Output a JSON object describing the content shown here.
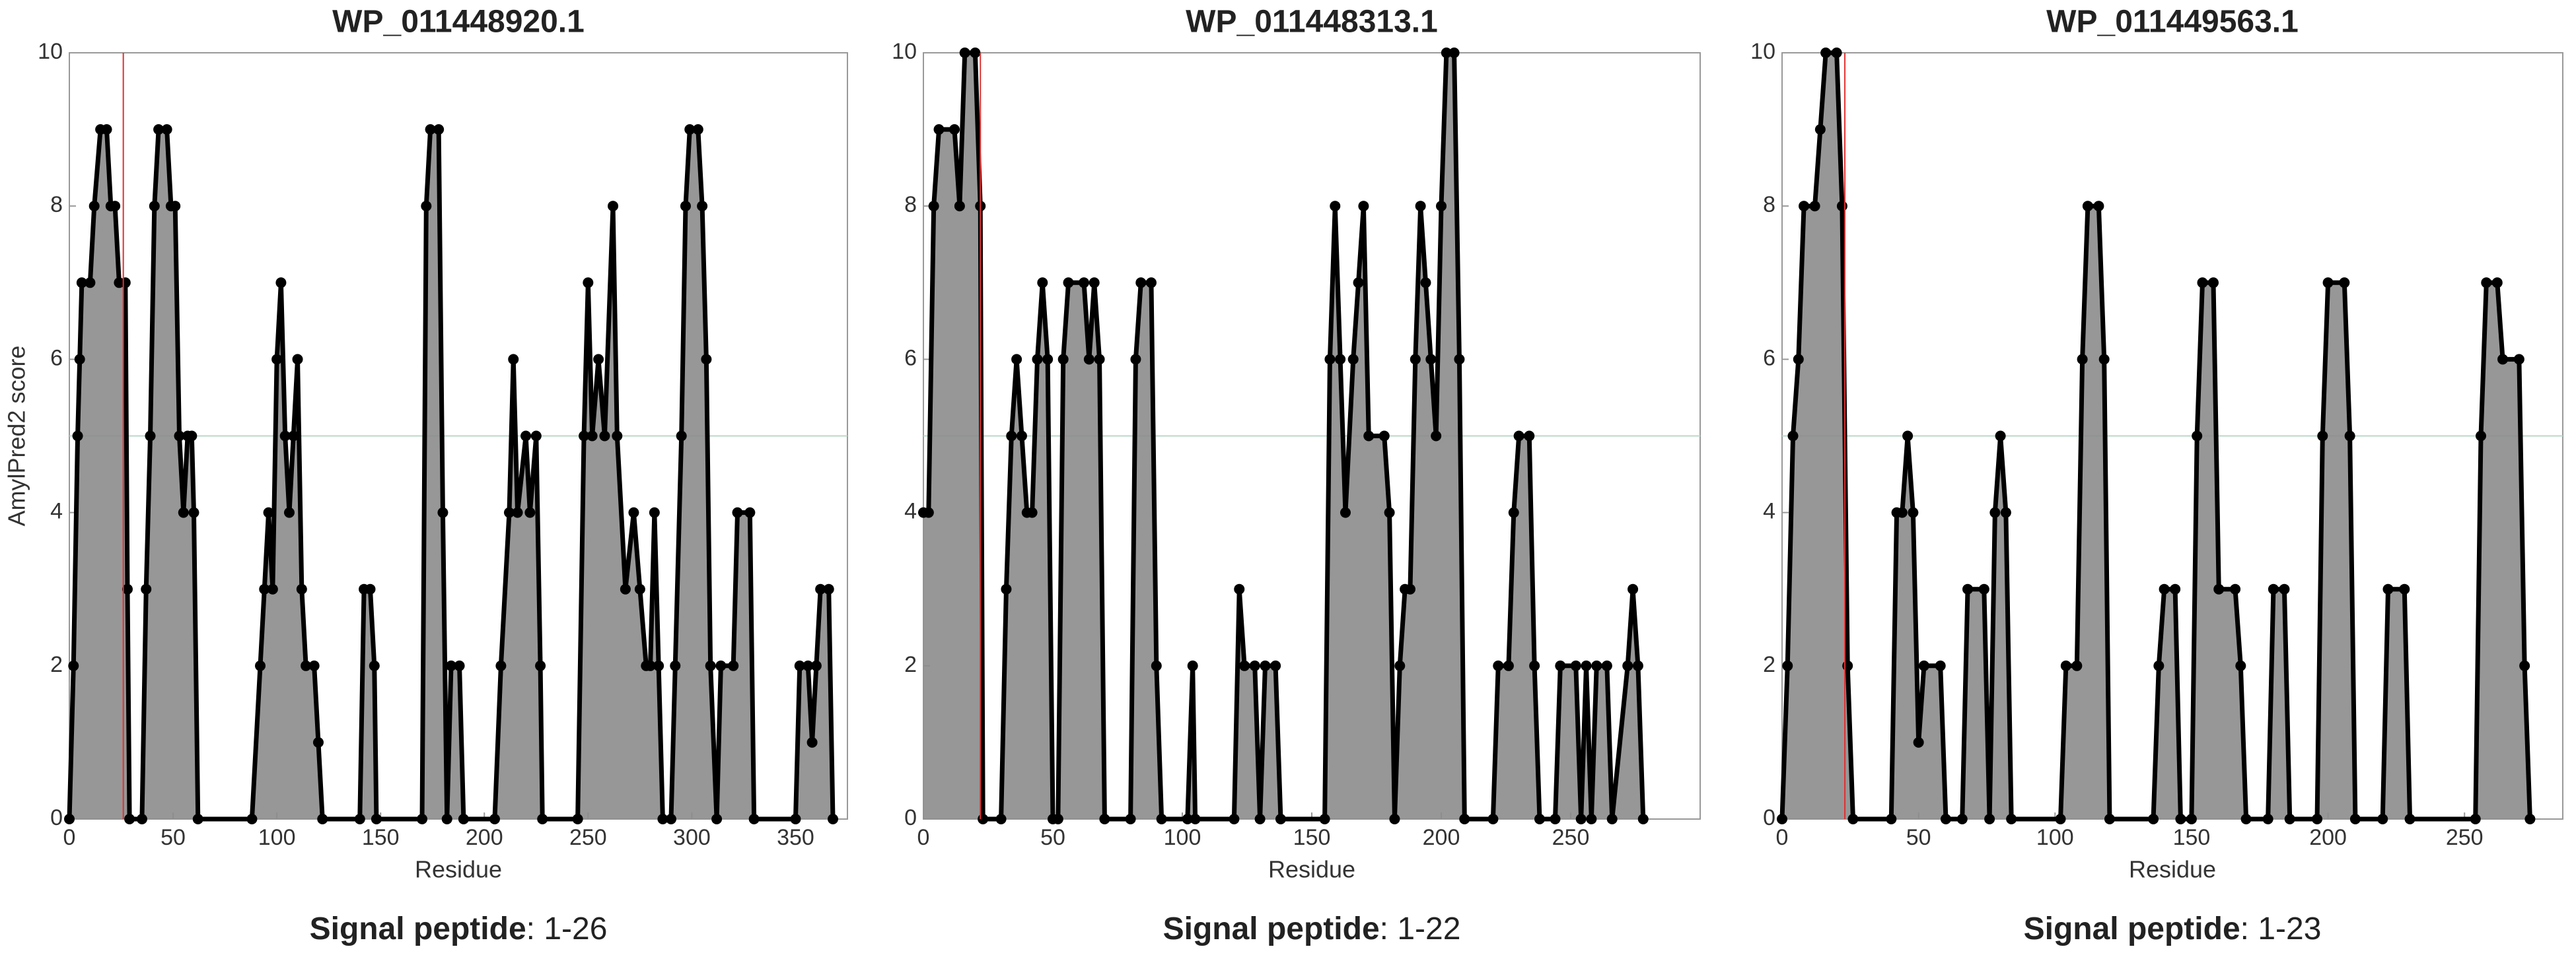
{
  "chart_data": [
    {
      "type": "area",
      "title": "WP_011448920.1",
      "xlabel": "Residue",
      "ylabel": "AmylPred2 score",
      "x": [
        0,
        2,
        4,
        5,
        6,
        10,
        12,
        15,
        18,
        20,
        22,
        24,
        27,
        28,
        29,
        35,
        37,
        39,
        41,
        43,
        47,
        49,
        51,
        53,
        55,
        57,
        59,
        60,
        62,
        88,
        92,
        94,
        96,
        98,
        100,
        102,
        104,
        106,
        108,
        110,
        112,
        114,
        118,
        120,
        122,
        140,
        142,
        145,
        147,
        148,
        170,
        172,
        174,
        178,
        180,
        182,
        184,
        188,
        190,
        205,
        208,
        212,
        214,
        216,
        220,
        222,
        225,
        227,
        228,
        245,
        248,
        250,
        252,
        255,
        258,
        262,
        264,
        268,
        272,
        275,
        278,
        280,
        282,
        284,
        286,
        290,
        292,
        295,
        297,
        299,
        303,
        305,
        307,
        309,
        312,
        314,
        320,
        322,
        328,
        330,
        350,
        352,
        356,
        358,
        360,
        362,
        366,
        368
      ],
      "values": [
        0,
        2,
        5,
        6,
        7,
        7,
        8,
        9,
        9,
        8,
        8,
        7,
        7,
        3,
        0,
        0,
        3,
        5,
        8,
        9,
        9,
        8,
        8,
        5,
        4,
        5,
        5,
        4,
        0,
        0,
        2,
        3,
        4,
        3,
        6,
        7,
        5,
        4,
        5,
        6,
        3,
        2,
        2,
        1,
        0,
        0,
        3,
        3,
        2,
        0,
        0,
        8,
        9,
        9,
        4,
        0,
        2,
        2,
        0,
        0,
        2,
        4,
        6,
        4,
        5,
        4,
        5,
        2,
        0,
        0,
        5,
        7,
        5,
        6,
        5,
        8,
        5,
        3,
        4,
        3,
        2,
        2,
        4,
        2,
        0,
        0,
        2,
        5,
        8,
        9,
        9,
        8,
        6,
        2,
        0,
        2,
        2,
        4,
        4,
        0,
        0,
        2,
        2,
        1,
        2,
        3,
        3,
        0
      ],
      "xlim": [
        0,
        375
      ],
      "xticks": [
        0,
        50,
        100,
        150,
        200,
        250,
        300,
        350
      ],
      "ylim": [
        0,
        10
      ],
      "yticks": [
        0,
        2,
        4,
        6,
        8,
        10
      ],
      "signal_end": 26,
      "threshold": 5,
      "color": "#8c8c8c",
      "line_color": "#000000",
      "signal_color": "#e03030",
      "footer": {
        "label": "Signal peptide",
        "text": ": 1-26"
      }
    },
    {
      "type": "area",
      "title": "WP_011448313.1",
      "xlabel": "Residue",
      "x": [
        0,
        2,
        4,
        6,
        12,
        14,
        16,
        20,
        22,
        23,
        30,
        32,
        34,
        36,
        38,
        40,
        42,
        44,
        46,
        48,
        50,
        52,
        54,
        56,
        62,
        64,
        66,
        68,
        70,
        80,
        82,
        84,
        88,
        90,
        92,
        102,
        104,
        105,
        120,
        122,
        124,
        128,
        130,
        132,
        136,
        138,
        155,
        157,
        159,
        161,
        163,
        166,
        168,
        170,
        172,
        178,
        180,
        182,
        184,
        186,
        188,
        190,
        192,
        194,
        196,
        198,
        200,
        202,
        205,
        207,
        209,
        220,
        222,
        226,
        228,
        230,
        234,
        236,
        238,
        244,
        246,
        252,
        254,
        256,
        258,
        260,
        264,
        266,
        272,
        274,
        276,
        278
      ],
      "values": [
        4,
        4,
        8,
        9,
        9,
        8,
        10,
        10,
        8,
        0,
        0,
        3,
        5,
        6,
        5,
        4,
        4,
        6,
        7,
        6,
        0,
        0,
        6,
        7,
        7,
        6,
        7,
        6,
        0,
        0,
        6,
        7,
        7,
        2,
        0,
        0,
        2,
        0,
        0,
        3,
        2,
        2,
        0,
        2,
        2,
        0,
        0,
        6,
        8,
        6,
        4,
        6,
        7,
        8,
        5,
        5,
        4,
        0,
        2,
        3,
        3,
        6,
        8,
        7,
        6,
        5,
        8,
        10,
        10,
        6,
        0,
        0,
        2,
        2,
        4,
        5,
        5,
        2,
        0,
        0,
        2,
        2,
        0,
        2,
        0,
        2,
        2,
        0,
        2,
        3,
        2,
        0
      ],
      "xlim": [
        0,
        300
      ],
      "xticks": [
        0,
        50,
        100,
        150,
        200,
        250
      ],
      "ylim": [
        0,
        10
      ],
      "yticks": [
        0,
        2,
        4,
        6,
        8,
        10
      ],
      "signal_end": 22,
      "threshold": 5,
      "color": "#8c8c8c",
      "line_color": "#000000",
      "signal_color": "#e03030",
      "footer": {
        "label": "Signal peptide",
        "text": ": 1-22"
      }
    },
    {
      "type": "area",
      "title": "WP_011449563.1",
      "xlabel": "Residue",
      "x": [
        0,
        2,
        4,
        6,
        8,
        12,
        14,
        16,
        20,
        22,
        24,
        26,
        40,
        42,
        44,
        46,
        48,
        50,
        52,
        58,
        60,
        66,
        68,
        74,
        76,
        78,
        80,
        82,
        84,
        102,
        104,
        108,
        110,
        112,
        116,
        118,
        120,
        136,
        138,
        140,
        144,
        146,
        150,
        152,
        154,
        158,
        160,
        166,
        168,
        170,
        178,
        180,
        184,
        186,
        196,
        198,
        200,
        206,
        208,
        210,
        220,
        222,
        228,
        230,
        254,
        256,
        258,
        262,
        264,
        270,
        272,
        274
      ],
      "values": [
        0,
        2,
        5,
        6,
        8,
        8,
        9,
        10,
        10,
        8,
        2,
        0,
        0,
        4,
        4,
        5,
        4,
        1,
        2,
        2,
        0,
        0,
        3,
        3,
        0,
        4,
        5,
        4,
        0,
        0,
        2,
        2,
        6,
        8,
        8,
        6,
        0,
        0,
        2,
        3,
        3,
        0,
        0,
        5,
        7,
        7,
        3,
        3,
        2,
        0,
        0,
        3,
        3,
        0,
        0,
        5,
        7,
        7,
        5,
        0,
        0,
        3,
        3,
        0,
        0,
        5,
        7,
        7,
        6,
        6,
        2,
        0
      ],
      "xlim": [
        0,
        286
      ],
      "xticks": [
        0,
        50,
        100,
        150,
        200,
        250
      ],
      "ylim": [
        0,
        10
      ],
      "yticks": [
        0,
        2,
        4,
        6,
        8,
        10
      ],
      "signal_end": 23,
      "threshold": 5,
      "color": "#8c8c8c",
      "line_color": "#000000",
      "signal_color": "#e03030",
      "footer": {
        "label": "Signal peptide",
        "text": ": 1-23"
      }
    }
  ]
}
